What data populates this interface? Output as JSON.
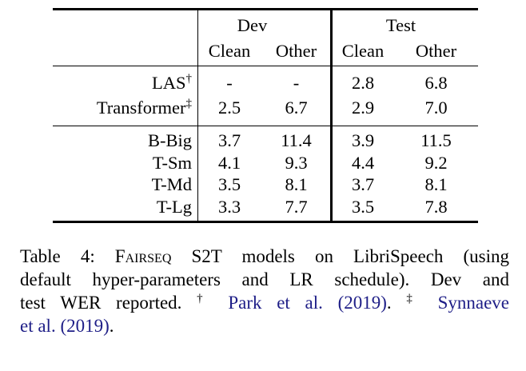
{
  "colors": {
    "text": "#000000",
    "rule": "#000000",
    "link": "#1e1e87"
  },
  "table": {
    "groups": [
      {
        "label": "Dev"
      },
      {
        "label": "Test"
      }
    ],
    "sub_headers": [
      "Clean",
      "Other",
      "Clean",
      "Other"
    ],
    "sections": [
      {
        "name": "prior-work",
        "rows": [
          {
            "label": "LAS",
            "sup": "†",
            "values": [
              "-",
              "-",
              "2.8",
              "6.8"
            ]
          },
          {
            "label": "Transformer",
            "sup": "‡",
            "values": [
              "2.5",
              "6.7",
              "2.9",
              "7.0"
            ]
          }
        ]
      },
      {
        "name": "fairseq-s2t-models",
        "rows": [
          {
            "label": "B-Big",
            "sup": "",
            "values": [
              "3.7",
              "11.4",
              "3.9",
              "11.5"
            ]
          },
          {
            "label": "T-Sm",
            "sup": "",
            "values": [
              "4.1",
              "9.3",
              "4.4",
              "9.2"
            ]
          },
          {
            "label": "T-Md",
            "sup": "",
            "values": [
              "3.5",
              "8.1",
              "3.7",
              "8.1"
            ]
          },
          {
            "label": "T-Lg",
            "sup": "",
            "values": [
              "3.3",
              "7.7",
              "3.5",
              "7.8"
            ]
          }
        ]
      }
    ]
  },
  "caption": {
    "lines": [
      {
        "segments": [
          {
            "text": "Table 4: ",
            "style": "plain"
          },
          {
            "text": "Fairseq",
            "style": "smallcaps"
          },
          {
            "text": " S2T models on LibriSpeech (using",
            "style": "plain"
          }
        ]
      },
      {
        "segments": [
          {
            "text": "default hyper-parameters and LR schedule). Dev and",
            "style": "plain"
          }
        ]
      },
      {
        "segments": [
          {
            "text": "test WER reported. ",
            "style": "plain"
          },
          {
            "text": "†",
            "style": "sup"
          },
          {
            "text": " ",
            "style": "plain"
          },
          {
            "text": "Park et al. (2019)",
            "style": "link",
            "name": "citation-link-park"
          },
          {
            "text": ". ",
            "style": "plain"
          },
          {
            "text": "‡",
            "style": "sup"
          },
          {
            "text": " ",
            "style": "plain"
          },
          {
            "text": "Synnaeve",
            "style": "link",
            "name": "citation-link-synnaeve"
          }
        ]
      },
      {
        "segments": [
          {
            "text": "et al. (2019)",
            "style": "link",
            "name": "citation-link-synnaeve-cont"
          },
          {
            "text": ".",
            "style": "plain"
          }
        ]
      }
    ]
  }
}
